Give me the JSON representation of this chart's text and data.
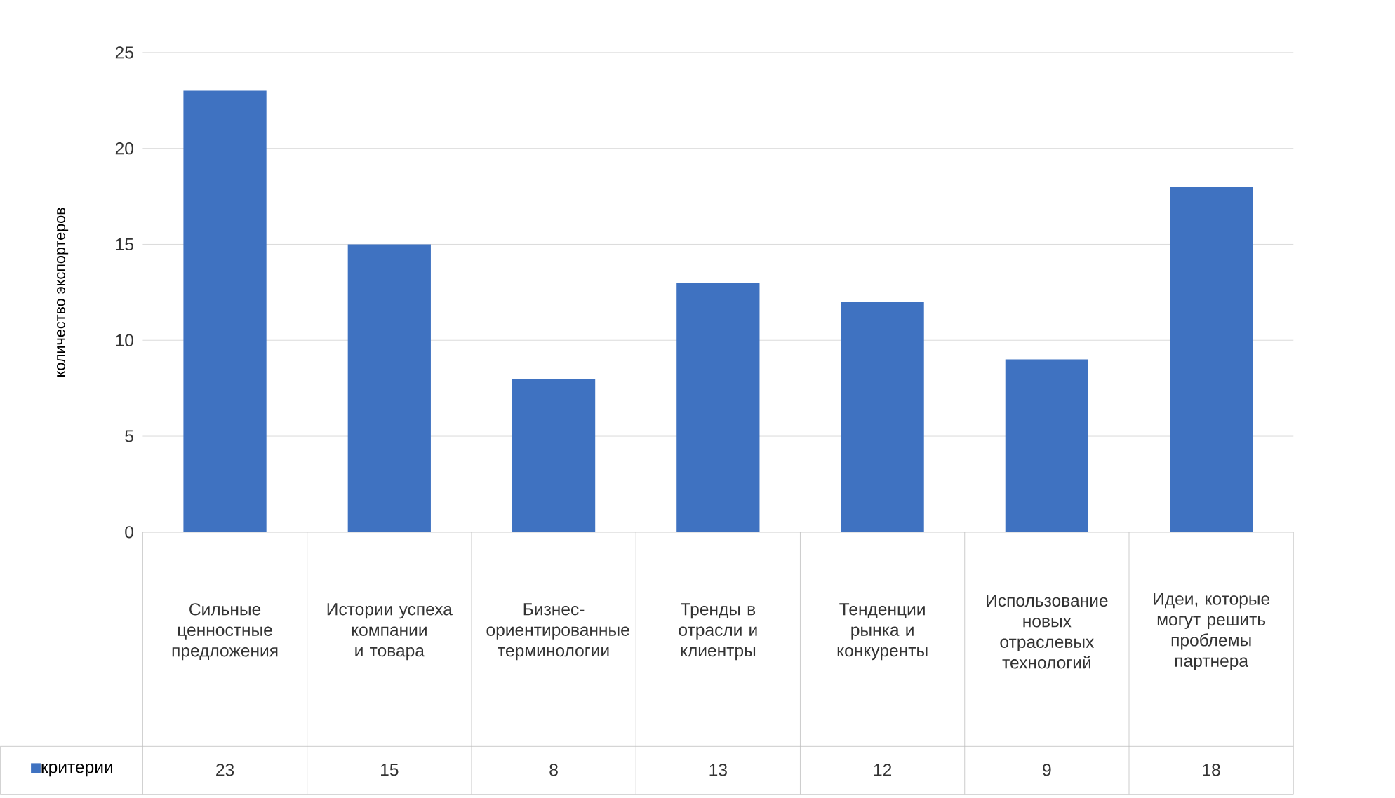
{
  "chart_data": {
    "type": "bar",
    "ylabel": "количество экспортеров",
    "categories": [
      "Сильные ценностные предложения",
      "Истории успеха компании и товара",
      "Бизнес-ориентированные терминологии",
      "Тренды в отрасли и клиентры",
      "Тенденции рынка и конкуренты",
      "Использование новых отраслевых технологий",
      "Идеи, которые могут решить проблемы партнера"
    ],
    "series": [
      {
        "name": "критерии",
        "color": "#3f72c1",
        "values": [
          23,
          15,
          8,
          13,
          12,
          9,
          18
        ]
      }
    ],
    "ylim": [
      0,
      25
    ],
    "yticks": [
      0,
      5,
      10,
      15,
      20,
      25
    ],
    "grid": "y",
    "legend": "bottom",
    "data_labels": true
  }
}
